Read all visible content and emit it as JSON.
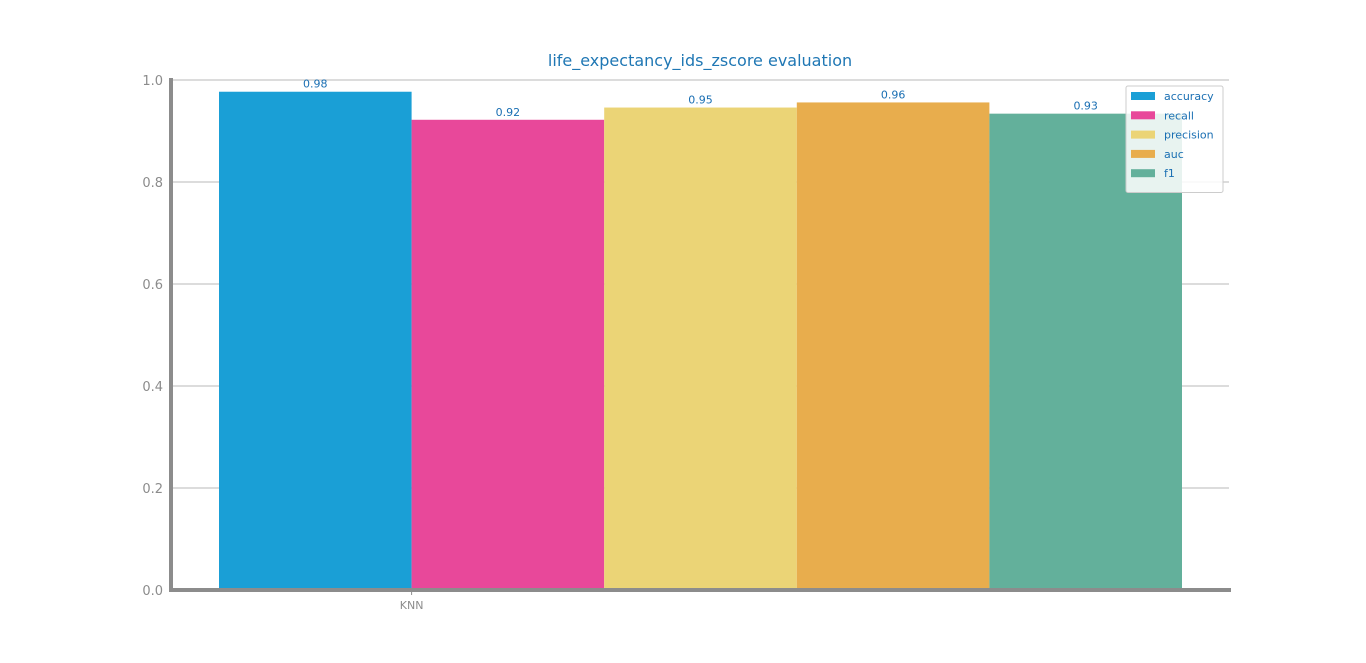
{
  "chart_data": {
    "type": "bar",
    "title": "life_expectancy_ids_zscore evaluation",
    "categories": [
      "KNN"
    ],
    "xlabel": "",
    "ylabel": "",
    "ylim": [
      0,
      1.0
    ],
    "yticks": [
      "0.0",
      "0.2",
      "0.4",
      "0.6",
      "0.8",
      "1.0"
    ],
    "grid": true,
    "legend_position": "top-right",
    "series": [
      {
        "name": "accuracy",
        "values": [
          0.977
        ],
        "label": "0.98",
        "color": "#1a9fd6"
      },
      {
        "name": "recall",
        "values": [
          0.922
        ],
        "label": "0.92",
        "color": "#e8489a"
      },
      {
        "name": "precision",
        "values": [
          0.946
        ],
        "label": "0.95",
        "color": "#ebd476"
      },
      {
        "name": "auc",
        "values": [
          0.956
        ],
        "label": "0.96",
        "color": "#e8ad4d"
      },
      {
        "name": "f1",
        "values": [
          0.934
        ],
        "label": "0.93",
        "color": "#63b09b"
      }
    ]
  }
}
